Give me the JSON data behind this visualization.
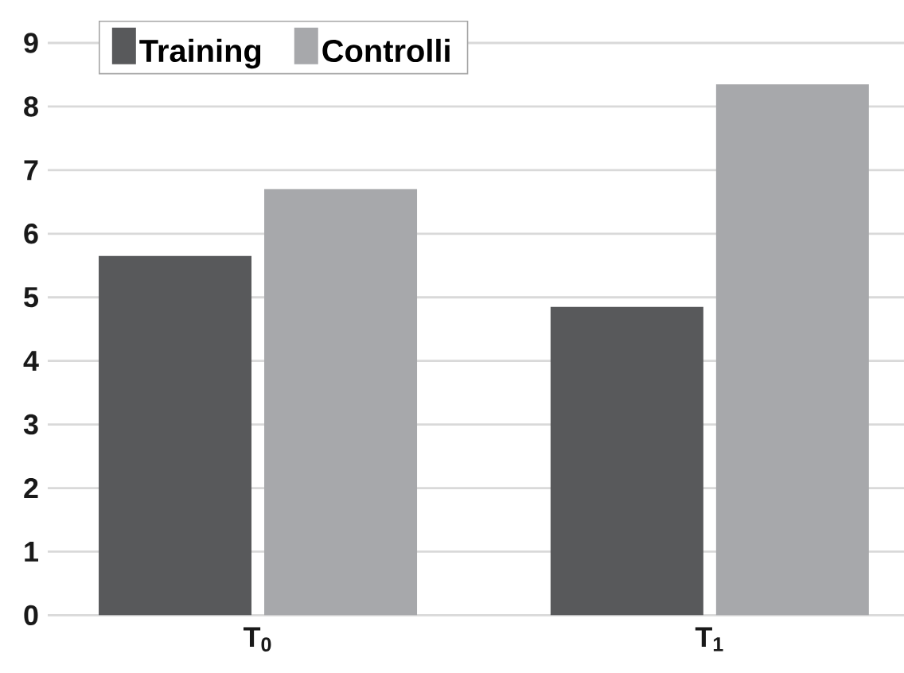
{
  "chart_data": {
    "type": "bar",
    "categories": [
      "T$_{0}$",
      "T$_{1}$"
    ],
    "series": [
      {
        "name": "Training",
        "color": "#58595b",
        "values": [
          5.65,
          4.85
        ]
      },
      {
        "name": "Controlli",
        "color": "#a7a8ab",
        "values": [
          6.7,
          8.35
        ]
      }
    ],
    "ylim": [
      0,
      9
    ],
    "yticks": [
      0,
      1,
      2,
      3,
      4,
      5,
      6,
      7,
      8,
      9
    ],
    "grid": "y",
    "legend": "top left"
  }
}
